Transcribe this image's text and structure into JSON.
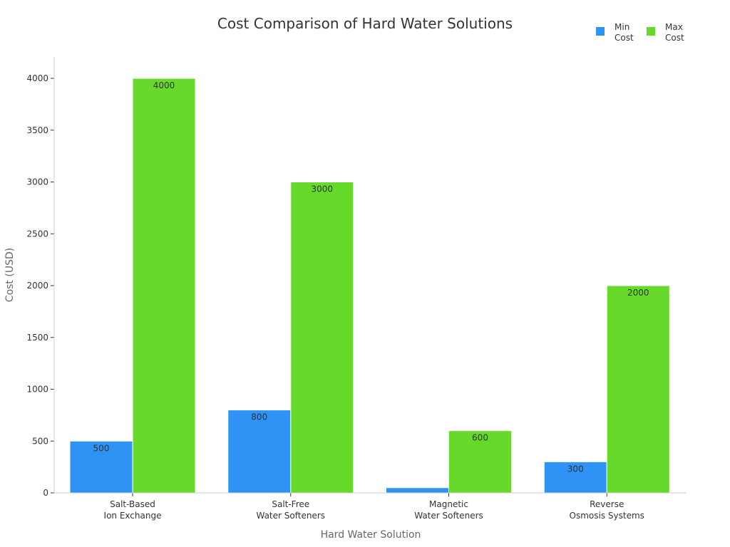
{
  "chart_data": {
    "type": "bar",
    "title": "Cost Comparison of Hard Water Solutions",
    "xlabel": "Hard Water Solution",
    "ylabel": "Cost (USD)",
    "categories": [
      [
        "Salt-Based",
        "Ion Exchange"
      ],
      [
        "Salt-Free",
        "Water Softeners"
      ],
      [
        "Magnetic",
        "Water Softeners"
      ],
      [
        "Reverse",
        "Osmosis Systems"
      ]
    ],
    "series": [
      {
        "name": [
          "Min",
          "Cost"
        ],
        "color": "#2e93f5",
        "values": [
          500,
          800,
          50,
          300
        ],
        "labels": [
          "500",
          "800",
          "",
          "300"
        ]
      },
      {
        "name": [
          "Max",
          "Cost"
        ],
        "color": "#66d92a",
        "values": [
          4000,
          3000,
          600,
          2000
        ],
        "labels": [
          "4000",
          "3000",
          "600",
          "2000"
        ]
      }
    ],
    "ylim": [
      0,
      4200
    ],
    "yticks": [
      0,
      500,
      1000,
      1500,
      2000,
      2500,
      3000,
      3500,
      4000
    ],
    "grid": false,
    "legend_position": "top-right"
  }
}
